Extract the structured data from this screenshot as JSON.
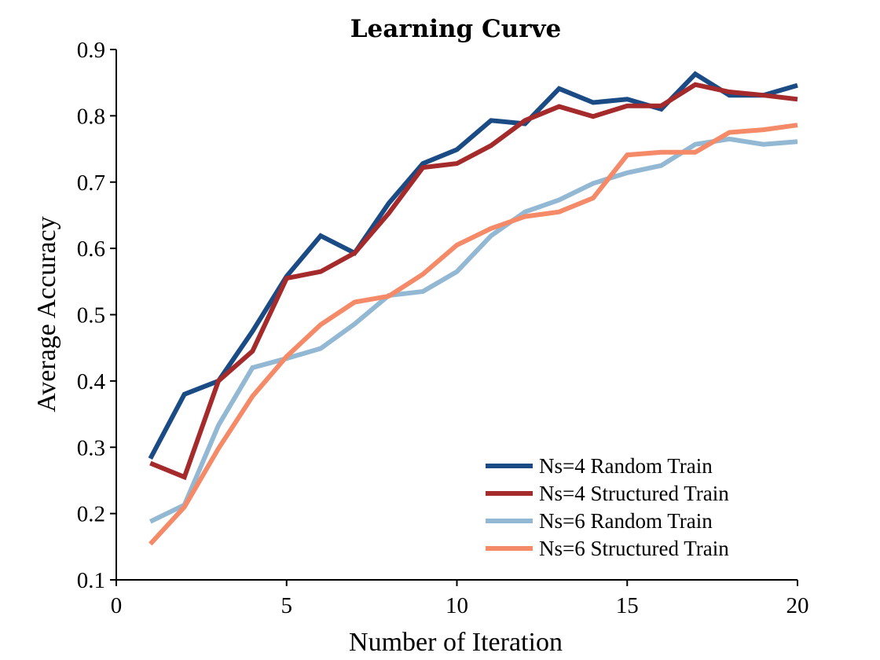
{
  "chart_data": {
    "type": "line",
    "title": "Learning Curve",
    "xlabel": "Number of Iteration",
    "ylabel": "Average Accuracy",
    "xlim": [
      0,
      20
    ],
    "ylim": [
      0.1,
      0.9
    ],
    "xticks": [
      0,
      5,
      10,
      15,
      20
    ],
    "yticks": [
      0.1,
      0.2,
      0.3,
      0.4,
      0.5,
      0.6,
      0.7,
      0.8,
      0.9
    ],
    "xtick_labels": [
      "0",
      "5",
      "10",
      "15",
      "20"
    ],
    "ytick_labels": [
      "0.1",
      "0.2",
      "0.3",
      "0.4",
      "0.5",
      "0.6",
      "0.7",
      "0.8",
      "0.9"
    ],
    "grid": false,
    "legend_position": "bottom-right",
    "x": [
      1,
      2,
      3,
      4,
      5,
      6,
      7,
      8,
      9,
      10,
      11,
      12,
      13,
      14,
      15,
      16,
      17,
      18,
      19,
      20
    ],
    "series": [
      {
        "name": "Ns=4 Random Train",
        "color": "#1b4b85",
        "values": [
          0.283,
          0.38,
          0.4,
          0.475,
          0.558,
          0.619,
          0.593,
          0.668,
          0.728,
          0.749,
          0.793,
          0.788,
          0.841,
          0.82,
          0.825,
          0.81,
          0.863,
          0.831,
          0.831,
          0.846
        ]
      },
      {
        "name": "Ns=4 Structured Train",
        "color": "#a42a2c",
        "values": [
          0.276,
          0.255,
          0.4,
          0.445,
          0.555,
          0.565,
          0.593,
          0.653,
          0.722,
          0.728,
          0.755,
          0.793,
          0.814,
          0.799,
          0.815,
          0.815,
          0.847,
          0.836,
          0.831,
          0.825
        ]
      },
      {
        "name": "Ns=6 Random Train",
        "color": "#93b8d3",
        "values": [
          0.188,
          0.213,
          0.333,
          0.42,
          0.434,
          0.449,
          0.486,
          0.529,
          0.535,
          0.565,
          0.619,
          0.655,
          0.673,
          0.698,
          0.714,
          0.725,
          0.757,
          0.765,
          0.757,
          0.761
        ]
      },
      {
        "name": "Ns=6 Structured Train",
        "color": "#f48a67",
        "values": [
          0.154,
          0.21,
          0.298,
          0.377,
          0.437,
          0.485,
          0.519,
          0.528,
          0.561,
          0.605,
          0.63,
          0.648,
          0.655,
          0.676,
          0.741,
          0.745,
          0.745,
          0.775,
          0.779,
          0.786
        ]
      }
    ]
  }
}
